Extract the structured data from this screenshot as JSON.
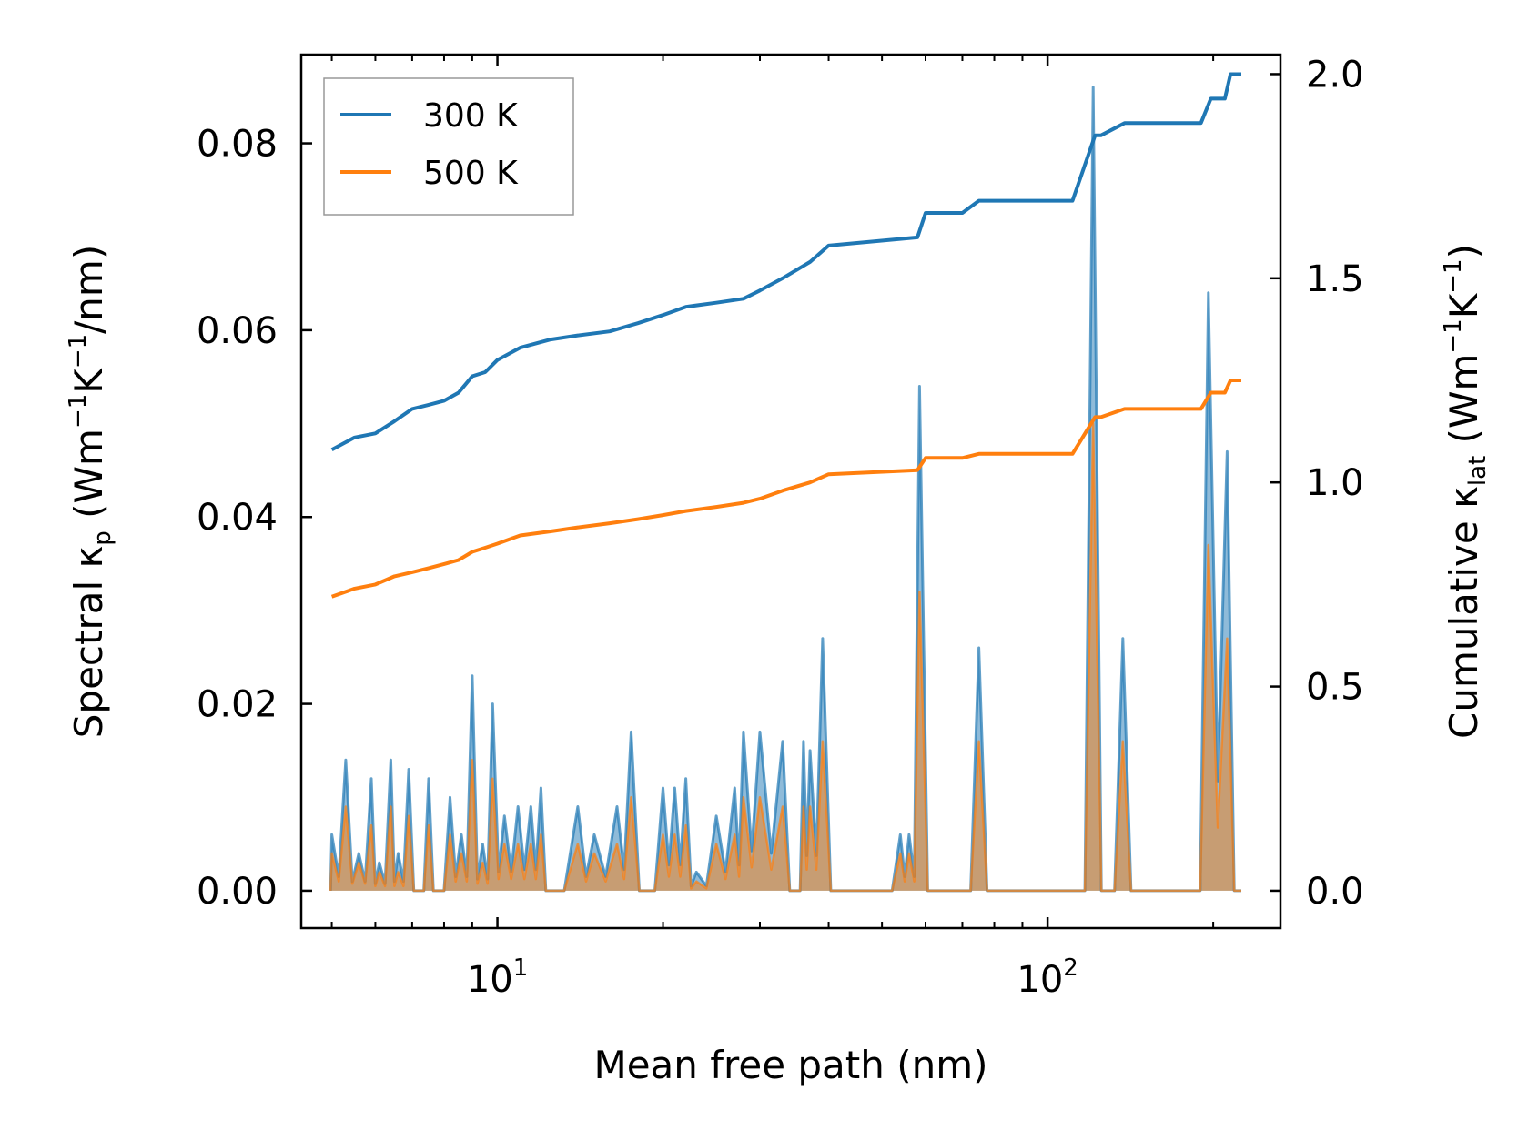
{
  "chart_data": {
    "type": "line",
    "title": "",
    "xlabel": "Mean free path (nm)",
    "ylabel_left": {
      "prefix": "Spectral κ",
      "sub": "p",
      "unit_open": " (Wm",
      "sup1": "−1",
      "mid": "K",
      "sup2": "−1",
      "unit_close": "/nm)"
    },
    "ylabel_right": {
      "prefix": "Cumulative κ",
      "sub": "lat",
      "unit_open": " (Wm",
      "sup1": "−1",
      "mid": "K",
      "sup2": "−1",
      "unit_close": ")"
    },
    "xscale": "log",
    "xlim": [
      4.4,
      265
    ],
    "ylim_left": [
      -0.004,
      0.0895
    ],
    "ylim_right": [
      -0.0915,
      2.0478
    ],
    "x_major_ticks": [
      10,
      100
    ],
    "x_tick_labels": [
      {
        "base": "10",
        "exp": "1"
      },
      {
        "base": "10",
        "exp": "2"
      }
    ],
    "y_left_ticks": [
      0.0,
      0.02,
      0.04,
      0.06,
      0.08
    ],
    "y_left_tick_labels": [
      "0.00",
      "0.02",
      "0.04",
      "0.06",
      "0.08"
    ],
    "y_right_ticks": [
      0.0,
      0.5,
      1.0,
      1.5,
      2.0
    ],
    "y_right_tick_labels": [
      "0.0",
      "0.5",
      "1.0",
      "1.5",
      "2.0"
    ],
    "legend": {
      "position": "top-left",
      "entries": [
        {
          "label": "300 K",
          "color": "#1f77b4"
        },
        {
          "label": "500 K",
          "color": "#ff7f0e"
        }
      ]
    },
    "series": [
      {
        "name": "300 K",
        "color": "#1f77b4",
        "spectral_peaks": [
          [
            5.0,
            0.006
          ],
          [
            5.3,
            0.014
          ],
          [
            5.6,
            0.004
          ],
          [
            5.9,
            0.012
          ],
          [
            6.1,
            0.003
          ],
          [
            6.4,
            0.014
          ],
          [
            6.6,
            0.004
          ],
          [
            6.9,
            0.013
          ],
          [
            7.2,
            0.0
          ],
          [
            7.5,
            0.012
          ],
          [
            7.8,
            0.0
          ],
          [
            8.2,
            0.01
          ],
          [
            8.6,
            0.006
          ],
          [
            9.0,
            0.023
          ],
          [
            9.4,
            0.005
          ],
          [
            9.8,
            0.02
          ],
          [
            10.3,
            0.008
          ],
          [
            10.9,
            0.009
          ],
          [
            11.5,
            0.009
          ],
          [
            12.0,
            0.011
          ],
          [
            12.5,
            0.0
          ],
          [
            14.0,
            0.009
          ],
          [
            15.0,
            0.006
          ],
          [
            16.5,
            0.009
          ],
          [
            17.5,
            0.017
          ],
          [
            20.0,
            0.011
          ],
          [
            21.0,
            0.011
          ],
          [
            22.0,
            0.012
          ],
          [
            23.0,
            0.002
          ],
          [
            25.0,
            0.008
          ],
          [
            27.0,
            0.011
          ],
          [
            28.0,
            0.017
          ],
          [
            30.0,
            0.017
          ],
          [
            33.0,
            0.016
          ],
          [
            35.0,
            0.0
          ],
          [
            36.0,
            0.016
          ],
          [
            37.0,
            0.015
          ],
          [
            39.0,
            0.027
          ],
          [
            54.0,
            0.006
          ],
          [
            56.0,
            0.006
          ],
          [
            58.5,
            0.054
          ],
          [
            75.0,
            0.026
          ],
          [
            121.0,
            0.086
          ],
          [
            137.0,
            0.027
          ],
          [
            196.0,
            0.064
          ],
          [
            212.0,
            0.047
          ]
        ],
        "cumulative": [
          [
            5.0,
            1.08
          ],
          [
            5.5,
            1.11
          ],
          [
            6.0,
            1.12
          ],
          [
            6.5,
            1.15
          ],
          [
            7.0,
            1.18
          ],
          [
            7.5,
            1.19
          ],
          [
            8.0,
            1.2
          ],
          [
            8.5,
            1.22
          ],
          [
            9.0,
            1.26
          ],
          [
            9.5,
            1.27
          ],
          [
            10.0,
            1.3
          ],
          [
            11.0,
            1.33
          ],
          [
            12.5,
            1.35
          ],
          [
            14.0,
            1.36
          ],
          [
            16.0,
            1.37
          ],
          [
            18.0,
            1.39
          ],
          [
            20.0,
            1.41
          ],
          [
            22.0,
            1.43
          ],
          [
            25.0,
            1.44
          ],
          [
            28.0,
            1.45
          ],
          [
            30.0,
            1.47
          ],
          [
            33.0,
            1.5
          ],
          [
            37.0,
            1.54
          ],
          [
            40.0,
            1.58
          ],
          [
            58.0,
            1.6
          ],
          [
            60.0,
            1.66
          ],
          [
            70.0,
            1.66
          ],
          [
            75.0,
            1.69
          ],
          [
            111.0,
            1.69
          ],
          [
            122.0,
            1.85
          ],
          [
            125.0,
            1.85
          ],
          [
            138.0,
            1.88
          ],
          [
            190.0,
            1.88
          ],
          [
            198.0,
            1.94
          ],
          [
            210.0,
            1.94
          ],
          [
            215.0,
            2.0
          ],
          [
            225.0,
            2.0
          ]
        ]
      },
      {
        "name": "500 K",
        "color": "#ff7f0e",
        "spectral_peaks": [
          [
            5.0,
            0.004
          ],
          [
            5.3,
            0.009
          ],
          [
            5.6,
            0.003
          ],
          [
            5.9,
            0.007
          ],
          [
            6.1,
            0.002
          ],
          [
            6.4,
            0.009
          ],
          [
            6.6,
            0.002
          ],
          [
            6.9,
            0.008
          ],
          [
            7.2,
            0.0
          ],
          [
            7.5,
            0.007
          ],
          [
            7.8,
            0.0
          ],
          [
            8.2,
            0.006
          ],
          [
            8.6,
            0.004
          ],
          [
            9.0,
            0.014
          ],
          [
            9.4,
            0.003
          ],
          [
            9.8,
            0.012
          ],
          [
            10.3,
            0.005
          ],
          [
            10.9,
            0.005
          ],
          [
            11.5,
            0.005
          ],
          [
            12.0,
            0.006
          ],
          [
            12.5,
            0.0
          ],
          [
            14.0,
            0.005
          ],
          [
            15.0,
            0.004
          ],
          [
            16.5,
            0.005
          ],
          [
            17.5,
            0.01
          ],
          [
            20.0,
            0.006
          ],
          [
            21.0,
            0.006
          ],
          [
            22.0,
            0.007
          ],
          [
            23.0,
            0.001
          ],
          [
            25.0,
            0.005
          ],
          [
            27.0,
            0.006
          ],
          [
            28.0,
            0.01
          ],
          [
            30.0,
            0.01
          ],
          [
            33.0,
            0.009
          ],
          [
            35.0,
            0.0
          ],
          [
            36.0,
            0.009
          ],
          [
            37.0,
            0.009
          ],
          [
            39.0,
            0.016
          ],
          [
            54.0,
            0.004
          ],
          [
            56.0,
            0.004
          ],
          [
            58.5,
            0.032
          ],
          [
            75.0,
            0.016
          ],
          [
            121.0,
            0.05
          ],
          [
            137.0,
            0.016
          ],
          [
            196.0,
            0.037
          ],
          [
            212.0,
            0.027
          ]
        ],
        "cumulative": [
          [
            5.0,
            0.72
          ],
          [
            5.5,
            0.74
          ],
          [
            6.0,
            0.75
          ],
          [
            6.5,
            0.77
          ],
          [
            7.0,
            0.78
          ],
          [
            7.5,
            0.79
          ],
          [
            8.0,
            0.8
          ],
          [
            8.5,
            0.81
          ],
          [
            9.0,
            0.83
          ],
          [
            9.5,
            0.84
          ],
          [
            10.0,
            0.85
          ],
          [
            11.0,
            0.87
          ],
          [
            12.5,
            0.88
          ],
          [
            14.0,
            0.89
          ],
          [
            16.0,
            0.9
          ],
          [
            18.0,
            0.91
          ],
          [
            20.0,
            0.92
          ],
          [
            22.0,
            0.93
          ],
          [
            25.0,
            0.94
          ],
          [
            28.0,
            0.95
          ],
          [
            30.0,
            0.96
          ],
          [
            33.0,
            0.98
          ],
          [
            37.0,
            1.0
          ],
          [
            40.0,
            1.02
          ],
          [
            58.0,
            1.03
          ],
          [
            60.0,
            1.06
          ],
          [
            70.0,
            1.06
          ],
          [
            75.0,
            1.07
          ],
          [
            111.0,
            1.07
          ],
          [
            122.0,
            1.16
          ],
          [
            125.0,
            1.16
          ],
          [
            138.0,
            1.18
          ],
          [
            190.0,
            1.18
          ],
          [
            198.0,
            1.22
          ],
          [
            210.0,
            1.22
          ],
          [
            215.0,
            1.25
          ],
          [
            225.0,
            1.25
          ]
        ]
      }
    ]
  }
}
